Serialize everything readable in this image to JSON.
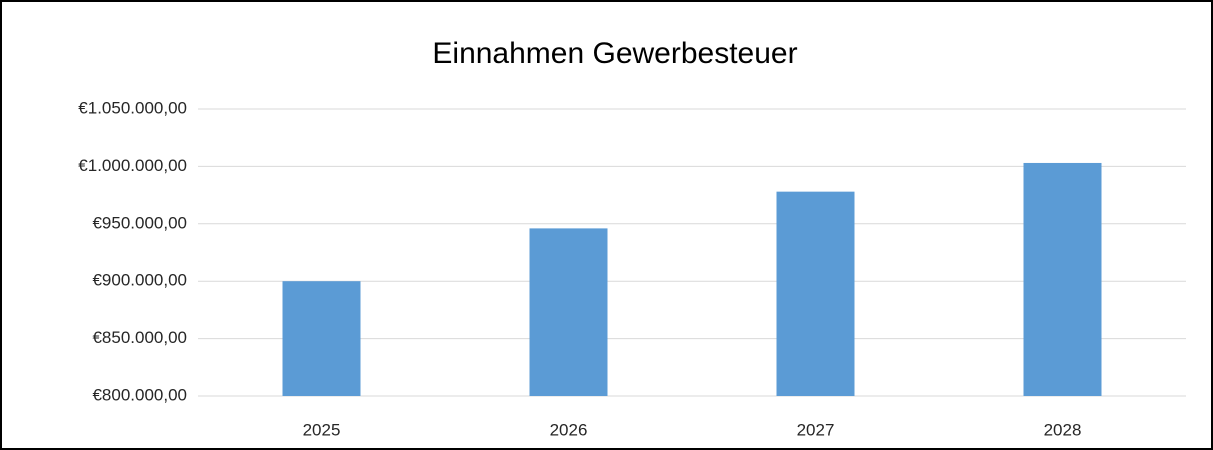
{
  "chart_data": {
    "type": "bar",
    "title": "Einnahmen Gewerbesteuer",
    "categories": [
      "2025",
      "2026",
      "2027",
      "2028"
    ],
    "values": [
      900000,
      946000,
      978000,
      1003000
    ],
    "color": "#5b9bd5",
    "ylim": [
      800000,
      1050000
    ],
    "yticks": [
      {
        "value": 800000,
        "label": "€800.000,00"
      },
      {
        "value": 850000,
        "label": "€850.000,00"
      },
      {
        "value": 900000,
        "label": "€900.000,00"
      },
      {
        "value": 950000,
        "label": "€950.000,00"
      },
      {
        "value": 1000000,
        "label": "€1.000.000,00"
      },
      {
        "value": 1050000,
        "label": "€1.050.000,00"
      }
    ],
    "grid": true
  }
}
